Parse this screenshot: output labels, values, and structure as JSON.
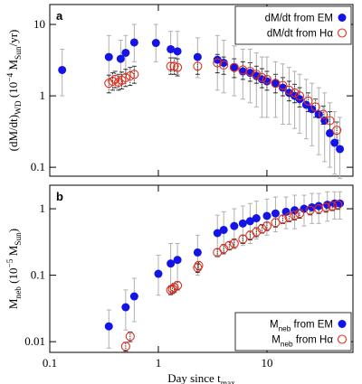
{
  "chart_data": [
    {
      "type": "scatter",
      "panel": "a",
      "xscale": "log",
      "yscale": "log",
      "legend": "upper right",
      "ylabel": [
        "(dM/dt)",
        {
          "sub": "WD"
        },
        " (10",
        {
          "sup": "−4"
        },
        " M",
        {
          "sub": "Sun"
        },
        "/yr)"
      ],
      "xlim": [
        0.1,
        62
      ],
      "xticks": [
        0.1,
        1,
        10
      ],
      "ylim": [
        0.075,
        19
      ],
      "yticks": [
        0.1,
        1,
        10
      ],
      "series": [
        {
          "name": "dM/dt  from EM",
          "color": "#1414e6",
          "marker": "filled",
          "errcolor": "#b0b0b0",
          "x": [
            0.13,
            0.35,
            0.45,
            0.5,
            0.6,
            0.95,
            1.3,
            1.5,
            2.3,
            3.5,
            4,
            5,
            6,
            7,
            8,
            9,
            10,
            12,
            14,
            16,
            18,
            20,
            23,
            26,
            30,
            34,
            38,
            42,
            47
          ],
          "values": [
            2.3,
            3.5,
            3.3,
            4.0,
            5.6,
            5.5,
            4.5,
            4.2,
            3.5,
            3.2,
            2.9,
            2.5,
            2.2,
            2.1,
            1.9,
            1.7,
            1.6,
            1.5,
            1.3,
            1.1,
            1.0,
            0.9,
            0.75,
            0.65,
            0.55,
            0.45,
            0.3,
            0.22,
            0.18
          ],
          "ylow": [
            1.0,
            1.6,
            1.5,
            2,
            3,
            3,
            2.2,
            2,
            1.8,
            1.2,
            1.1,
            1.0,
            0.9,
            0.8,
            0.7,
            0.5,
            0.5,
            0.5,
            0.4,
            0.4,
            0.35,
            0.3,
            0.25,
            0.2,
            0.15,
            0.12,
            0.1,
            0.08,
            0.07
          ],
          "yhigh": [
            4.5,
            7,
            6,
            7,
            10,
            10,
            8,
            8,
            6.5,
            7,
            6,
            5,
            4.5,
            4.5,
            4,
            3.5,
            3.5,
            3,
            2.8,
            2.5,
            2.2,
            2,
            1.7,
            1.5,
            1.3,
            1.1,
            0.8,
            0.6,
            0.5
          ]
        },
        {
          "name": "dM/dt  from Hα",
          "color": "#e0301e",
          "marker": "open",
          "errcolor": "#333333",
          "x": [
            0.35,
            0.38,
            0.4,
            0.43,
            0.46,
            0.5,
            0.55,
            0.6,
            1.3,
            1.4,
            1.5,
            2.3,
            3.5,
            4,
            5,
            6,
            7,
            8,
            9,
            10,
            12,
            14,
            16,
            18,
            20,
            24,
            28,
            33,
            38,
            44
          ],
          "values": [
            1.5,
            1.6,
            1.7,
            1.55,
            1.65,
            1.8,
            1.9,
            2.0,
            2.6,
            2.6,
            2.5,
            2.6,
            2.9,
            2.7,
            2.5,
            2.3,
            2.2,
            2.0,
            1.8,
            1.7,
            1.5,
            1.4,
            1.2,
            1.1,
            1.0,
            0.85,
            0.7,
            0.55,
            0.45,
            0.33
          ],
          "ylow": [
            1.1,
            1.2,
            1.3,
            1.2,
            1.25,
            1.35,
            1.4,
            1.5,
            2.0,
            2.0,
            1.9,
            2.0,
            2.1,
            2.0,
            1.8,
            1.7,
            1.6,
            1.5,
            1.3,
            1.2,
            1.1,
            1.0,
            0.85,
            0.8,
            0.7,
            0.6,
            0.5,
            0.4,
            0.32,
            0.24
          ],
          "yhigh": [
            1.95,
            2.1,
            2.2,
            2.0,
            2.15,
            2.35,
            2.5,
            2.6,
            3.4,
            3.4,
            3.3,
            3.4,
            3.8,
            3.5,
            3.3,
            3.0,
            2.9,
            2.6,
            2.4,
            2.2,
            2.0,
            1.8,
            1.6,
            1.45,
            1.3,
            1.1,
            0.9,
            0.72,
            0.6,
            0.43
          ]
        }
      ]
    },
    {
      "type": "scatter",
      "panel": "b",
      "xscale": "log",
      "yscale": "log",
      "legend": "lower right",
      "ylabel": [
        "M",
        {
          "sub": "neb"
        },
        " (10",
        {
          "sup": "−5"
        },
        " M",
        {
          "sub": "Sun"
        },
        ")"
      ],
      "xlabel": [
        "Day since t",
        {
          "sub": "max"
        }
      ],
      "xlim": [
        0.1,
        62
      ],
      "xticks": [
        0.1,
        1,
        10
      ],
      "ylim": [
        0.0069,
        2.26
      ],
      "yticks": [
        0.01,
        0.1,
        1
      ],
      "series": [
        {
          "name": [
            "M",
            {
              "sub": "neb"
            },
            " from EM"
          ],
          "color": "#1414e6",
          "marker": "filled",
          "errcolor": "#b0b0b0",
          "x": [
            0.35,
            0.5,
            0.6,
            1.0,
            1.3,
            1.5,
            2.3,
            3.5,
            4,
            5,
            6,
            7,
            8,
            10,
            12,
            15,
            18,
            22,
            26,
            30,
            36,
            42,
            47
          ],
          "values": [
            0.017,
            0.033,
            0.048,
            0.105,
            0.15,
            0.17,
            0.22,
            0.43,
            0.48,
            0.55,
            0.6,
            0.65,
            0.72,
            0.78,
            0.85,
            0.9,
            0.95,
            1.0,
            1.05,
            1.1,
            1.15,
            1.2,
            1.2
          ],
          "ylow": [
            0.008,
            0.015,
            0.02,
            0.05,
            0.07,
            0.08,
            0.1,
            0.2,
            0.22,
            0.25,
            0.28,
            0.3,
            0.35,
            0.4,
            0.45,
            0.5,
            0.5,
            0.55,
            0.6,
            0.6,
            0.65,
            0.7,
            0.7
          ],
          "yhigh": [
            0.03,
            0.06,
            0.09,
            0.2,
            0.3,
            0.3,
            0.4,
            0.8,
            0.9,
            1.0,
            1.1,
            1.2,
            1.3,
            1.4,
            1.5,
            1.5,
            1.6,
            1.6,
            1.7,
            1.7,
            1.8,
            1.8,
            1.8
          ]
        },
        {
          "name": [
            "M",
            {
              "sub": "neb"
            },
            " from Hα"
          ],
          "color": "#e0301e",
          "marker": "open",
          "errcolor": "#333333",
          "x": [
            0.5,
            0.55,
            1.3,
            1.35,
            1.4,
            1.5,
            2.3,
            2.35,
            3.5,
            4,
            4.5,
            5,
            6,
            7,
            8,
            9,
            10,
            12,
            14,
            16,
            18,
            20,
            25,
            30,
            35,
            40,
            45
          ],
          "values": [
            0.0085,
            0.012,
            0.06,
            0.062,
            0.065,
            0.07,
            0.13,
            0.14,
            0.22,
            0.25,
            0.28,
            0.3,
            0.35,
            0.4,
            0.45,
            0.5,
            0.55,
            0.62,
            0.7,
            0.75,
            0.8,
            0.85,
            0.95,
            1.0,
            1.05,
            1.1,
            1.15
          ],
          "ylow": [
            0.0072,
            0.01,
            0.051,
            0.053,
            0.055,
            0.06,
            0.11,
            0.12,
            0.19,
            0.21,
            0.24,
            0.26,
            0.3,
            0.34,
            0.38,
            0.43,
            0.47,
            0.53,
            0.6,
            0.64,
            0.68,
            0.72,
            0.81,
            0.85,
            0.89,
            0.94,
            0.98
          ],
          "yhigh": [
            0.0098,
            0.014,
            0.069,
            0.071,
            0.075,
            0.08,
            0.15,
            0.16,
            0.25,
            0.29,
            0.32,
            0.35,
            0.4,
            0.46,
            0.52,
            0.58,
            0.63,
            0.71,
            0.8,
            0.86,
            0.92,
            0.98,
            1.09,
            1.15,
            1.21,
            1.27,
            1.32
          ]
        }
      ]
    }
  ]
}
